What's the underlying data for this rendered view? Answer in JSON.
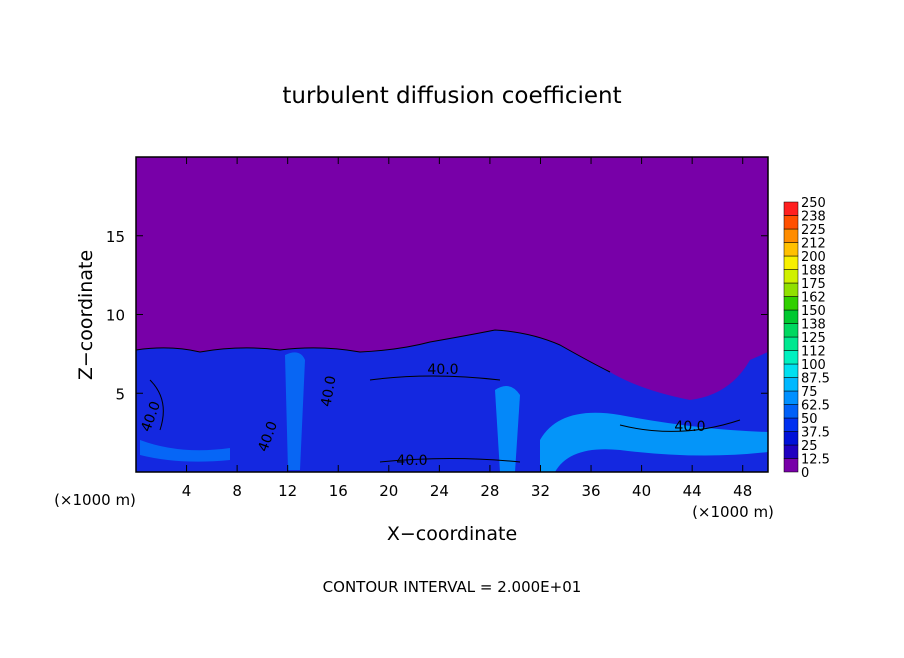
{
  "chart_data": {
    "type": "contour",
    "title": "turbulent diffusion coefficient",
    "xlabel": "X−coordinate",
    "ylabel": "Z−coordinate",
    "x_unit_left": "(×1000 m)",
    "x_unit_right": "(×1000 m)",
    "xlim": [
      0,
      50
    ],
    "xticks": [
      4,
      8,
      12,
      16,
      20,
      24,
      28,
      32,
      36,
      40,
      44,
      48
    ],
    "ylim": [
      0,
      20
    ],
    "yticks": [
      5,
      10,
      15
    ],
    "colorbar": {
      "levels": [
        0,
        12.5,
        25,
        37.5,
        50,
        62.5,
        75,
        87.5,
        100,
        112,
        125,
        138,
        150,
        162,
        175,
        188,
        200,
        212,
        225,
        238,
        250
      ],
      "colors": [
        "#7800a8",
        "#2000c0",
        "#0010d8",
        "#0030f0",
        "#0060f8",
        "#0090ff",
        "#00b8ff",
        "#00e0f0",
        "#00f0c0",
        "#00e890",
        "#00d860",
        "#00c830",
        "#30d000",
        "#90e000",
        "#d0f000",
        "#f8f000",
        "#ffc000",
        "#ff8c00",
        "#ff5000",
        "#ff2020"
      ]
    },
    "contour_labels": [
      "40.0",
      "40.0",
      "40.0",
      "40.0",
      "40.0",
      "40.0"
    ],
    "footer": "CONTOUR INTERVAL = 2.000E+01"
  }
}
